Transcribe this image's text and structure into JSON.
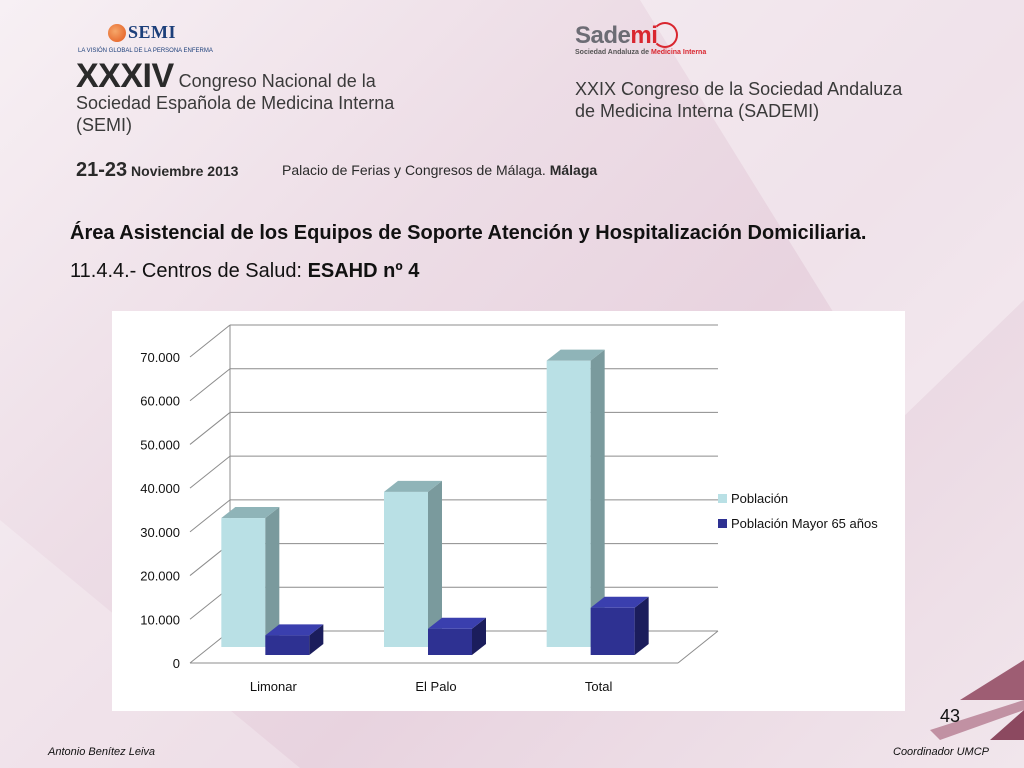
{
  "logos": {
    "semi_word": "SEMI",
    "semi_tagline": "LA VISIÓN GLOBAL DE LA PERSONA ENFERMA",
    "sademi_word_a": "Sade",
    "sademi_word_b": "mi",
    "sademi_tag_a": "Sociedad Andaluza de ",
    "sademi_tag_b": "Medicina Interna"
  },
  "header": {
    "left_big": "XXXIV",
    "left_line1_rest": " Congreso Nacional de la",
    "left_line2": "Sociedad Española de Medicina Interna",
    "left_line3": "(SEMI)",
    "right_line1": "XXIX Congreso de la Sociedad Andaluza",
    "right_line2": "de Medicina Interna (SADEMI)",
    "date_days": "21-23",
    "date_month": " Noviembre 2013",
    "venue": "Palacio de Ferias y Congresos de Málaga. ",
    "venue_city": "Málaga"
  },
  "slide": {
    "title": "Área Asistencial de los Equipos de Soporte Atención y Hospitalización Domiciliaria.",
    "subtitle_a": "11.4.4.- Centros de Salud: ",
    "subtitle_b": "ESAHD nº 4",
    "page_number": "43",
    "footer_left": "Antonio Benítez Leiva",
    "footer_right": "Coordinador UMCP"
  },
  "chart_data": {
    "type": "bar",
    "style": "3d-clustered-column",
    "categories": [
      "Limonar",
      "El Palo",
      "Total"
    ],
    "series": [
      {
        "name": "Población",
        "values": [
          29500,
          35500,
          65500
        ],
        "color": "#b9e0e5",
        "side_color": "#7a9a9d",
        "top_color": "#8fb4b8"
      },
      {
        "name": "Población Mayor 65 años",
        "values": [
          4500,
          6000,
          10800
        ],
        "color": "#2e3192",
        "side_color": "#1b1d5c",
        "top_color": "#3a3fae"
      }
    ],
    "y_ticks": [
      "0",
      "10.000",
      "20.000",
      "30.000",
      "40.000",
      "50.000",
      "60.000",
      "70.000"
    ],
    "ylim": [
      0,
      70000
    ],
    "grid": true,
    "legend_position": "right"
  }
}
